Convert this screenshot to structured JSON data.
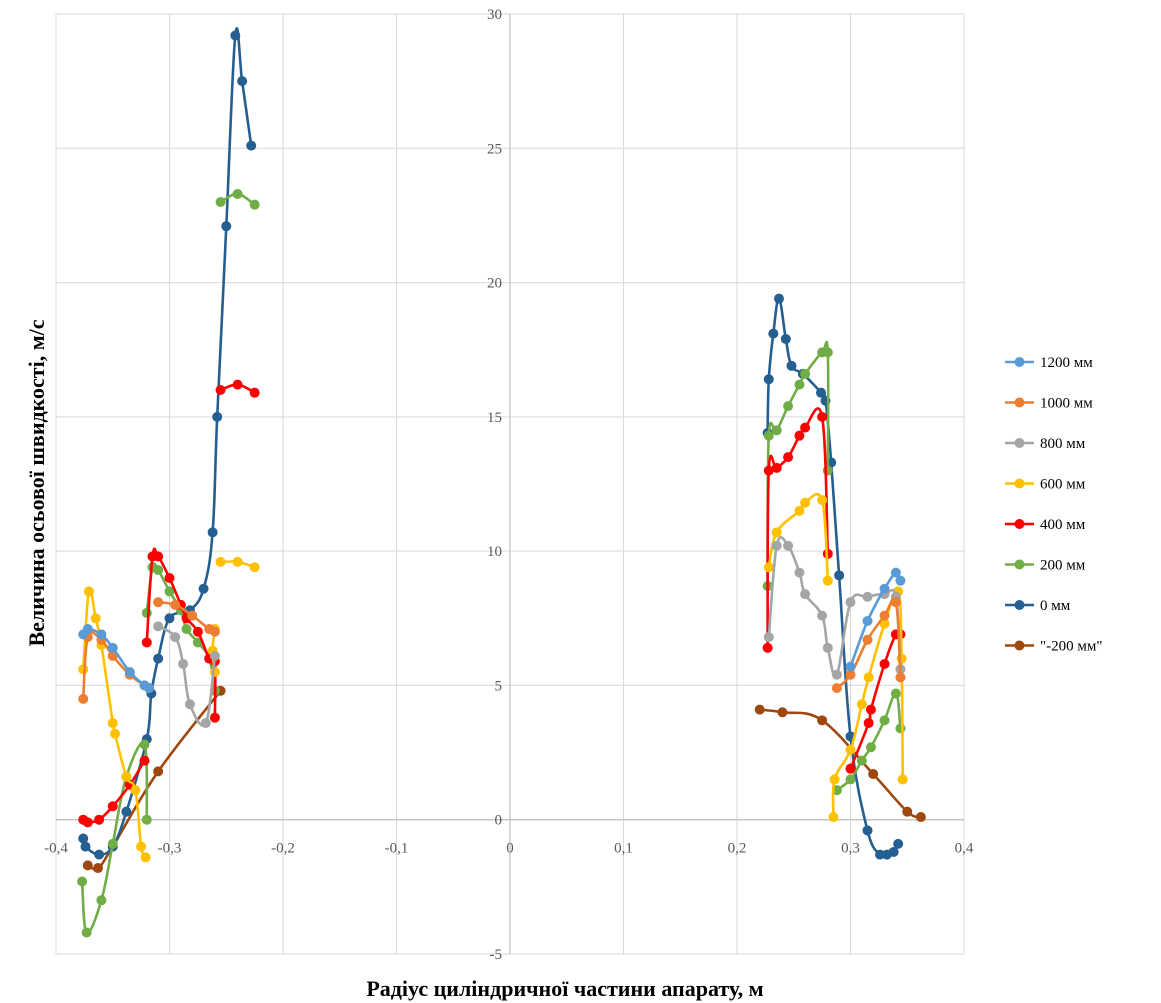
{
  "chart_data": {
    "type": "scatter",
    "xlabel": "Радіус циліндричної частини апарату, м",
    "ylabel": "Величина осьової швидкості, м/с",
    "xlim": [
      -0.4,
      0.4
    ],
    "ylim": [
      -5,
      30
    ],
    "x_ticks": [
      -0.4,
      -0.3,
      -0.2,
      -0.1,
      0,
      0.1,
      0.2,
      0.3,
      0.4
    ],
    "x_tick_labels": [
      "-0,4",
      "-0,3",
      "-0,2",
      "-0,1",
      "0",
      "0,1",
      "0,2",
      "0,3",
      "0,4"
    ],
    "y_ticks": [
      -5,
      0,
      5,
      10,
      15,
      20,
      25,
      30
    ],
    "y_tick_labels": [
      "-5",
      "0",
      "5",
      "10",
      "15",
      "20",
      "25",
      "30"
    ],
    "grid": true,
    "legend": "right",
    "series": [
      {
        "name": "1200 мм",
        "color": "#5B9BD5",
        "segments": [
          [
            [
              -0.376,
              6.9
            ],
            [
              -0.372,
              7.1
            ],
            [
              -0.36,
              6.9
            ],
            [
              -0.35,
              6.4
            ],
            [
              -0.335,
              5.5
            ],
            [
              -0.322,
              5.0
            ],
            [
              -0.318,
              4.9
            ]
          ],
          [
            [
              0.3,
              5.7
            ],
            [
              0.315,
              7.4
            ],
            [
              0.33,
              8.6
            ],
            [
              0.34,
              9.2
            ],
            [
              0.344,
              8.9
            ]
          ]
        ]
      },
      {
        "name": "1000 мм",
        "color": "#ED7D31",
        "segments": [
          [
            [
              -0.376,
              4.5
            ],
            [
              -0.372,
              6.8
            ],
            [
              -0.36,
              6.7
            ],
            [
              -0.35,
              6.1
            ],
            [
              -0.335,
              5.4
            ],
            [
              -0.322,
              5.0
            ],
            [
              -0.318,
              4.9
            ]
          ],
          [
            [
              -0.31,
              8.1
            ],
            [
              -0.295,
              8.0
            ],
            [
              -0.28,
              7.6
            ],
            [
              -0.265,
              7.1
            ],
            [
              -0.26,
              7.0
            ]
          ],
          [
            [
              0.288,
              4.9
            ],
            [
              0.3,
              5.4
            ],
            [
              0.315,
              6.7
            ],
            [
              0.33,
              7.6
            ],
            [
              0.34,
              8.1
            ],
            [
              0.344,
              5.3
            ]
          ]
        ]
      },
      {
        "name": "800 мм",
        "color": "#A5A5A5",
        "segments": [
          [
            [
              -0.31,
              7.2
            ],
            [
              -0.295,
              6.8
            ],
            [
              -0.288,
              5.8
            ],
            [
              -0.282,
              4.3
            ],
            [
              -0.268,
              3.6
            ],
            [
              -0.26,
              6.1
            ]
          ],
          [
            [
              0.228,
              6.8
            ],
            [
              0.235,
              10.2
            ],
            [
              0.245,
              10.2
            ],
            [
              0.255,
              9.2
            ],
            [
              0.26,
              8.4
            ],
            [
              0.275,
              7.6
            ],
            [
              0.28,
              6.4
            ],
            [
              0.288,
              5.4
            ],
            [
              0.3,
              8.1
            ],
            [
              0.315,
              8.3
            ],
            [
              0.33,
              8.4
            ],
            [
              0.34,
              8.3
            ],
            [
              0.344,
              5.6
            ]
          ]
        ]
      },
      {
        "name": "600 мм",
        "color": "#FFC000",
        "segments": [
          [
            [
              -0.376,
              5.6
            ],
            [
              -0.371,
              8.5
            ],
            [
              -0.365,
              7.5
            ],
            [
              -0.36,
              6.5
            ],
            [
              -0.35,
              3.6
            ],
            [
              -0.348,
              3.2
            ],
            [
              -0.338,
              1.6
            ],
            [
              -0.33,
              1.1
            ],
            [
              -0.325,
              -1.0
            ],
            [
              -0.321,
              -1.4
            ]
          ],
          [
            [
              -0.26,
              7.1
            ],
            [
              -0.262,
              6.3
            ],
            [
              -0.26,
              5.5
            ]
          ],
          [
            [
              -0.255,
              9.6
            ],
            [
              -0.24,
              9.6
            ],
            [
              -0.225,
              9.4
            ]
          ],
          [
            [
              0.228,
              9.4
            ],
            [
              0.235,
              10.7
            ],
            [
              0.255,
              11.5
            ],
            [
              0.26,
              11.8
            ],
            [
              0.275,
              11.9
            ],
            [
              0.28,
              8.9
            ]
          ],
          [
            [
              0.285,
              0.1
            ],
            [
              0.286,
              1.5
            ],
            [
              0.3,
              2.6
            ],
            [
              0.31,
              4.3
            ],
            [
              0.316,
              5.3
            ],
            [
              0.33,
              7.3
            ],
            [
              0.342,
              8.5
            ],
            [
              0.345,
              6.0
            ],
            [
              0.346,
              1.5
            ]
          ]
        ]
      },
      {
        "name": "400 мм",
        "color": "#FF0000",
        "segments": [
          [
            [
              -0.376,
              0.0
            ],
            [
              -0.372,
              -0.1
            ],
            [
              -0.362,
              0.0
            ],
            [
              -0.35,
              0.5
            ],
            [
              -0.335,
              1.3
            ],
            [
              -0.322,
              2.2
            ]
          ],
          [
            [
              -0.32,
              6.6
            ],
            [
              -0.315,
              9.8
            ],
            [
              -0.31,
              9.8
            ],
            [
              -0.3,
              9.0
            ],
            [
              -0.29,
              8.0
            ],
            [
              -0.285,
              7.5
            ],
            [
              -0.275,
              7.0
            ],
            [
              -0.265,
              6.0
            ],
            [
              -0.26,
              5.9
            ],
            [
              -0.26,
              3.8
            ]
          ],
          [
            [
              -0.255,
              16.0
            ],
            [
              -0.24,
              16.2
            ],
            [
              -0.225,
              15.9
            ]
          ],
          [
            [
              0.227,
              6.4
            ],
            [
              0.228,
              13.0
            ],
            [
              0.235,
              13.1
            ],
            [
              0.245,
              13.5
            ],
            [
              0.255,
              14.3
            ],
            [
              0.26,
              14.6
            ],
            [
              0.275,
              15.0
            ],
            [
              0.28,
              9.9
            ]
          ],
          [
            [
              0.3,
              1.9
            ],
            [
              0.316,
              3.6
            ],
            [
              0.318,
              4.1
            ],
            [
              0.33,
              5.8
            ],
            [
              0.34,
              6.9
            ],
            [
              0.344,
              6.9
            ]
          ]
        ]
      },
      {
        "name": "200 мм",
        "color": "#70AD47",
        "segments": [
          [
            [
              -0.377,
              -2.3
            ],
            [
              -0.373,
              -4.2
            ],
            [
              -0.36,
              -3.0
            ],
            [
              -0.35,
              -0.9
            ],
            [
              -0.338,
              1.6
            ],
            [
              -0.322,
              2.8
            ],
            [
              -0.32,
              0.0
            ]
          ],
          [
            [
              -0.32,
              7.7
            ],
            [
              -0.315,
              9.4
            ],
            [
              -0.31,
              9.3
            ],
            [
              -0.3,
              8.5
            ],
            [
              -0.29,
              7.8
            ],
            [
              -0.285,
              7.1
            ],
            [
              -0.275,
              6.6
            ],
            [
              -0.265,
              6.0
            ],
            [
              -0.26,
              4.8
            ]
          ],
          [
            [
              -0.255,
              23.0
            ],
            [
              -0.24,
              23.3
            ],
            [
              -0.225,
              22.9
            ]
          ],
          [
            [
              0.227,
              8.7
            ],
            [
              0.228,
              14.3
            ],
            [
              0.235,
              14.5
            ],
            [
              0.245,
              15.4
            ],
            [
              0.255,
              16.2
            ],
            [
              0.26,
              16.6
            ],
            [
              0.275,
              17.4
            ],
            [
              0.28,
              17.4
            ],
            [
              0.28,
              13.0
            ]
          ],
          [
            [
              0.288,
              1.1
            ],
            [
              0.3,
              1.5
            ],
            [
              0.31,
              2.2
            ],
            [
              0.318,
              2.7
            ],
            [
              0.33,
              3.7
            ],
            [
              0.34,
              4.7
            ],
            [
              0.344,
              3.4
            ]
          ]
        ]
      },
      {
        "name": "0 мм",
        "color": "#255E91",
        "segments": [
          [
            [
              -0.376,
              -0.7
            ],
            [
              -0.374,
              -1.0
            ],
            [
              -0.362,
              -1.3
            ],
            [
              -0.35,
              -1.0
            ],
            [
              -0.338,
              0.3
            ],
            [
              -0.32,
              3.0
            ],
            [
              -0.316,
              4.7
            ],
            [
              -0.31,
              6.0
            ],
            [
              -0.3,
              7.5
            ],
            [
              -0.282,
              7.8
            ],
            [
              -0.27,
              8.6
            ],
            [
              -0.262,
              10.7
            ],
            [
              -0.258,
              15.0
            ],
            [
              -0.25,
              22.1
            ],
            [
              -0.242,
              29.2
            ],
            [
              -0.236,
              27.5
            ],
            [
              -0.228,
              25.1
            ]
          ],
          [
            [
              0.227,
              14.4
            ],
            [
              0.228,
              16.4
            ],
            [
              0.232,
              18.1
            ],
            [
              0.237,
              19.4
            ],
            [
              0.243,
              17.9
            ],
            [
              0.248,
              16.9
            ],
            [
              0.258,
              16.6
            ],
            [
              0.274,
              15.9
            ],
            [
              0.278,
              15.6
            ],
            [
              0.283,
              13.3
            ],
            [
              0.29,
              9.1
            ],
            [
              0.3,
              3.1
            ],
            [
              0.315,
              -0.4
            ],
            [
              0.326,
              -1.3
            ],
            [
              0.332,
              -1.3
            ],
            [
              0.338,
              -1.2
            ],
            [
              0.342,
              -0.9
            ]
          ]
        ]
      },
      {
        "name": "\"-200 мм\"",
        "color": "#9E480E",
        "segments": [
          [
            [
              -0.372,
              -1.7
            ],
            [
              -0.363,
              -1.8
            ],
            [
              -0.35,
              -1.0
            ],
            [
              -0.31,
              1.8
            ],
            [
              -0.255,
              4.8
            ]
          ],
          [
            [
              0.22,
              4.1
            ],
            [
              0.24,
              4.0
            ],
            [
              0.275,
              3.7
            ],
            [
              0.32,
              1.7
            ],
            [
              0.35,
              0.3
            ],
            [
              0.362,
              0.1
            ]
          ]
        ]
      }
    ]
  }
}
